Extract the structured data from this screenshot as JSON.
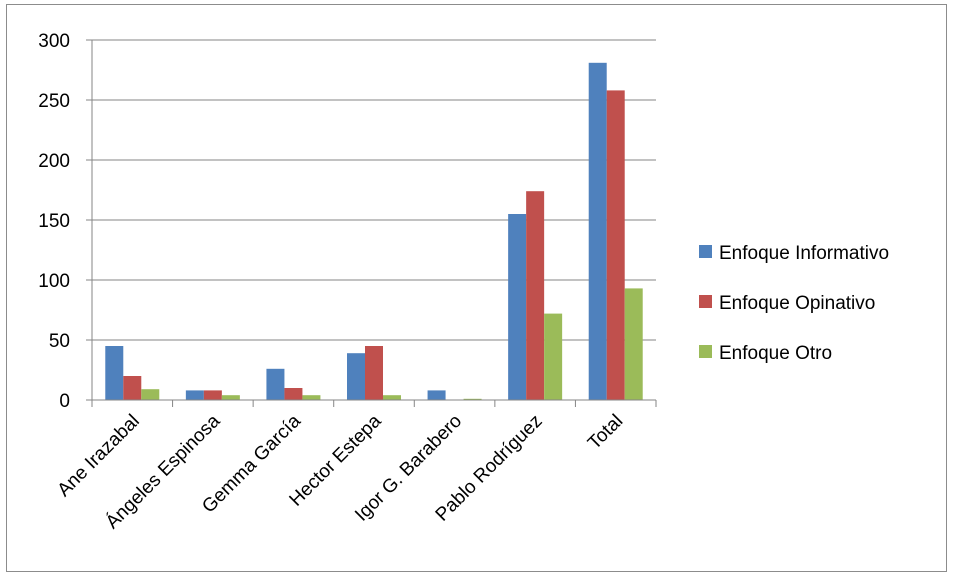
{
  "chart_data": {
    "type": "bar",
    "categories": [
      "Ane Irazabal",
      "Ángeles Espinosa",
      "Gemma García",
      "Hector Estepa",
      "Igor G. Barabero",
      "Pablo Rodríguez",
      "Total"
    ],
    "series": [
      {
        "name": "Enfoque Informativo",
        "color": "#4f81bd",
        "values": [
          45,
          8,
          26,
          39,
          8,
          155,
          281
        ]
      },
      {
        "name": "Enfoque Opinativo",
        "color": "#c0504d",
        "values": [
          20,
          8,
          10,
          45,
          0,
          174,
          258
        ]
      },
      {
        "name": "Enfoque Otro",
        "color": "#9bbb59",
        "values": [
          9,
          4,
          4,
          4,
          1,
          72,
          93
        ]
      }
    ],
    "yticks": [
      "0",
      "50",
      "100",
      "150",
      "200",
      "250",
      "300"
    ],
    "ylim": [
      0,
      300
    ],
    "grid": true,
    "legend_position": "right",
    "title": "",
    "xlabel": "",
    "ylabel": ""
  }
}
